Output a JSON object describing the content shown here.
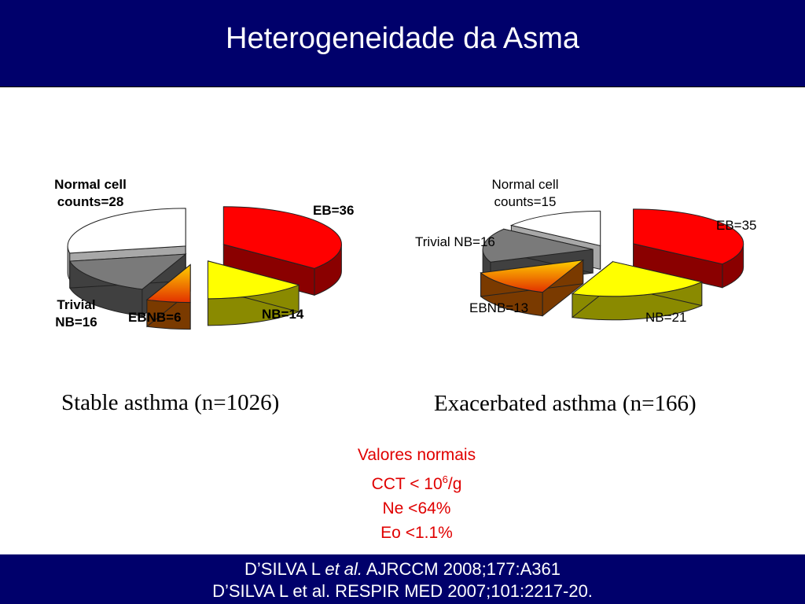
{
  "header": {
    "title": "Heterogeneidade da Asma"
  },
  "chart_data": [
    {
      "type": "pie",
      "title": "Stable asthma (n=1026)",
      "slices": [
        {
          "label_lines": [
            "EB=36"
          ],
          "value": 36,
          "color": "#ff0000"
        },
        {
          "label_lines": [
            "NB=14"
          ],
          "value": 14,
          "color": "#ffff00"
        },
        {
          "label_lines": [
            "EBNB=6"
          ],
          "value": 6,
          "color": "#ff8a00"
        },
        {
          "label_lines": [
            "Trivial",
            "NB=16"
          ],
          "value": 16,
          "color": "#7a7a7a"
        },
        {
          "label_lines": [
            "Normal cell",
            "counts=28"
          ],
          "value": 28,
          "color": "#ffffff"
        }
      ]
    },
    {
      "type": "pie",
      "title": "Exacerbated asthma (n=166)",
      "slices": [
        {
          "label_lines": [
            "EB=35"
          ],
          "value": 35,
          "color": "#ff0000"
        },
        {
          "label_lines": [
            "NB=21"
          ],
          "value": 21,
          "color": "#ffff00"
        },
        {
          "label_lines": [
            "EBNB=13"
          ],
          "value": 13,
          "color": "#ff8a00"
        },
        {
          "label_lines": [
            "Trivial NB=16"
          ],
          "value": 16,
          "color": "#7a7a7a"
        },
        {
          "label_lines": [
            "Normal cell",
            "counts=15"
          ],
          "value": 15,
          "color": "#ffffff"
        }
      ]
    }
  ],
  "normal_values": {
    "title": "Valores normais",
    "cct_prefix": "CCT < 10",
    "cct_exp": "6",
    "cct_suffix": "/g",
    "ne": "Ne <64%",
    "eo": "Eo <1.1%"
  },
  "footer": {
    "ref1_author": "D’SILVA L ",
    "ref1_etal": "et al.",
    "ref1_rest": " AJRCCM 2008;177:A361",
    "ref2": "D’SILVA L et al. RESPIR MED 2007;101:2217-20."
  }
}
